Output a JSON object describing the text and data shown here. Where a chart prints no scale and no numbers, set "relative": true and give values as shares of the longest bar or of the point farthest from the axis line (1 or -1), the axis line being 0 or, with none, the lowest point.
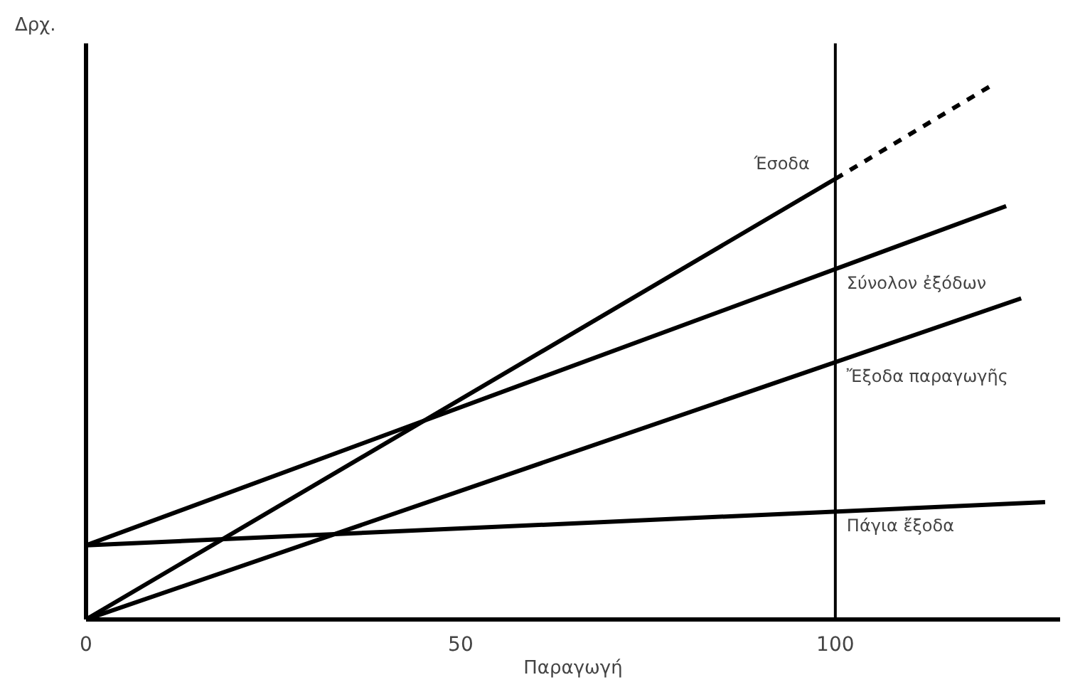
{
  "chart_data": {
    "type": "line",
    "relative": true,
    "ylabel": "Δρχ.",
    "xlabel": "Παραγωγή",
    "xlim": [
      0,
      130
    ],
    "xticks": [
      0,
      50,
      100
    ],
    "tick_labels": "x",
    "grid": false,
    "marker": "none",
    "series": [
      {
        "name": "Έσοδα",
        "color": "#000000",
        "x": [
          0,
          100
        ],
        "values": [
          0,
          0.826
        ],
        "line_style": "solid"
      },
      {
        "color": "#000000",
        "x": [
          100,
          120.7
        ],
        "values": [
          0.826,
          1.0
        ],
        "line_style": "dashed"
      },
      {
        "name": "Σύνολον ἐξόδων",
        "color": "#000000",
        "x": [
          0,
          122.8
        ],
        "values": [
          0.139,
          0.775
        ],
        "line_style": "solid"
      },
      {
        "name": "Ἔξοδα παραγωγῆς",
        "color": "#000000",
        "x": [
          0,
          124.8
        ],
        "values": [
          0,
          0.602
        ],
        "line_style": "solid"
      },
      {
        "name": "Πάγια ἔξοδα",
        "color": "#000000",
        "x": [
          0,
          128
        ],
        "values": [
          0.139,
          0.22
        ],
        "line_style": "solid"
      }
    ],
    "ref_lines": [
      {
        "axis": "x",
        "value": 100,
        "color": "#000000",
        "line_style": "solid"
      }
    ]
  }
}
